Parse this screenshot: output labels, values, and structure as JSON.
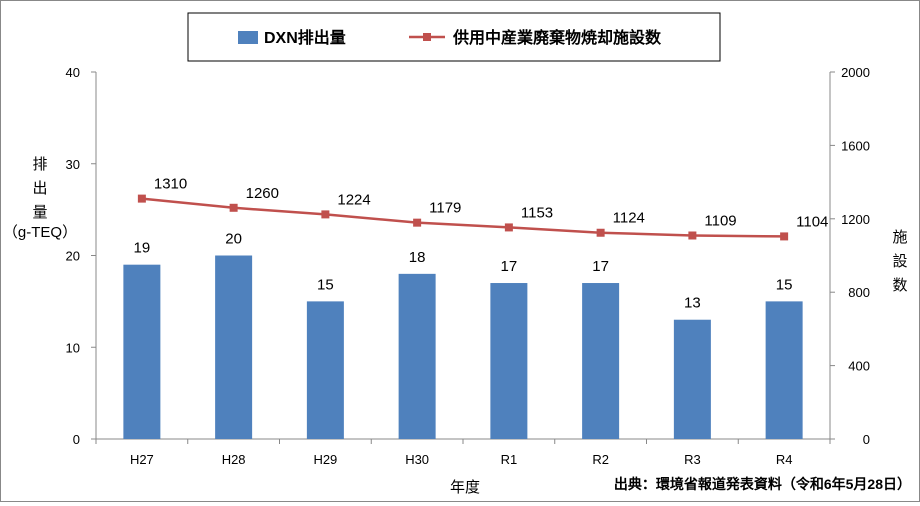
{
  "chart_data": {
    "type": "bar",
    "categories": [
      "H27",
      "H28",
      "H29",
      "H30",
      "R1",
      "R2",
      "R3",
      "R4"
    ],
    "series": [
      {
        "name": "DXN排出量",
        "type": "bar",
        "axis": "left",
        "values": [
          19,
          20,
          15,
          18,
          17,
          17,
          13,
          15
        ],
        "color": "#4F81BD"
      },
      {
        "name": "供用中産業廃棄物焼却施設数",
        "type": "line",
        "axis": "right",
        "values": [
          1310,
          1260,
          1224,
          1179,
          1153,
          1124,
          1109,
          1104
        ],
        "color": "#C0504D"
      }
    ],
    "xlabel": "年度",
    "ylabel_left_chars": [
      "排",
      "出",
      "量"
    ],
    "ylabel_left_unit": "（g-TEQ）",
    "ylabel_right_chars": [
      "施",
      "設",
      "数"
    ],
    "ylim_left": [
      0,
      40
    ],
    "yticks_left": [
      0,
      10,
      20,
      30,
      40
    ],
    "ylim_right": [
      0,
      2000
    ],
    "yticks_right": [
      0,
      400,
      800,
      1200,
      1600,
      2000
    ],
    "grid": false,
    "legend_position": "top-center",
    "source_note": "出典：環境省報道発表資料（令和6年5月28日）"
  }
}
